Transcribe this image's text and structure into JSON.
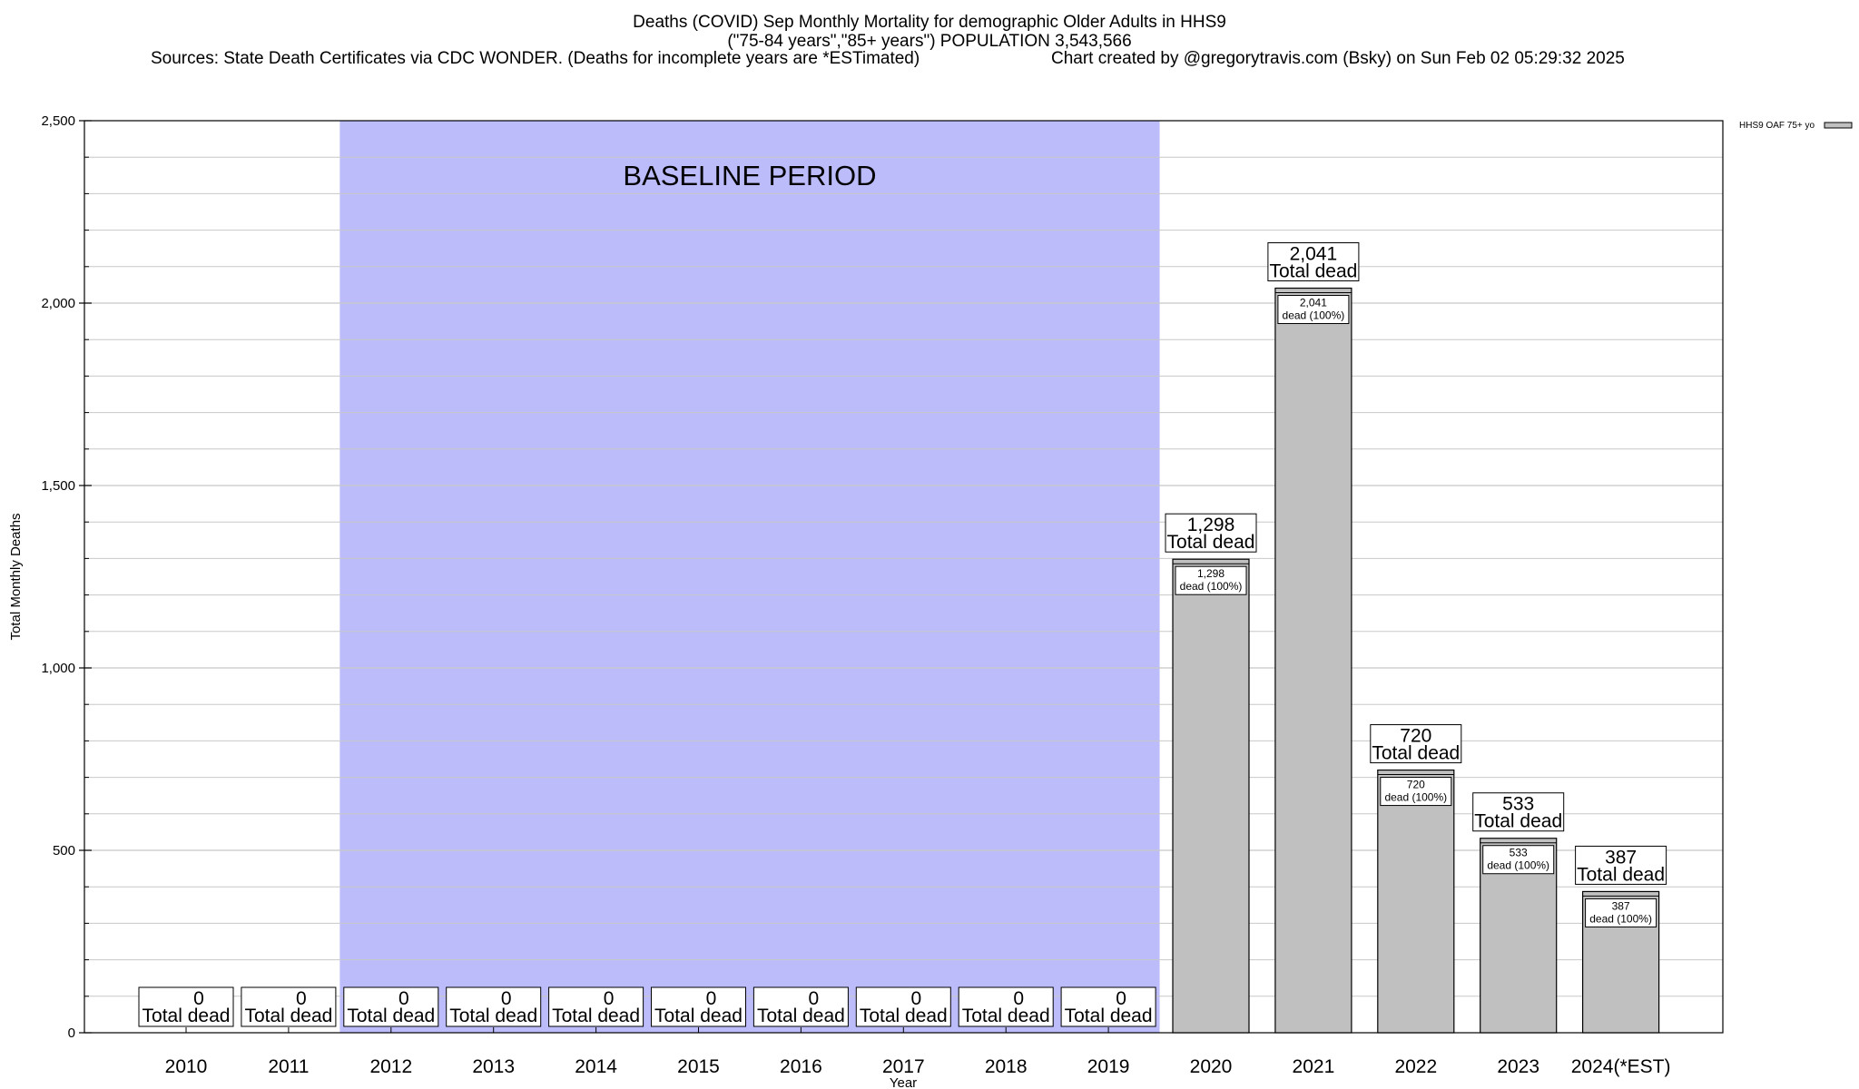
{
  "title": {
    "line1": "Deaths (COVID) Sep Monthly Mortality for demographic Older Adults in HHS9",
    "line2": "(\"75-84 years\",\"85+ years\") POPULATION 3,543,566",
    "sources": "Sources: State Death Certificates via CDC WONDER. (Deaths for incomplete years are *ESTimated)",
    "credit": "Chart created by @gregorytravis.com (Bsky) on Sun Feb 02 05:29:32 2025"
  },
  "colors": {
    "bar": "#c0c0c0",
    "baseline_band": "#bcbcfb",
    "grid": "#c8c8c8"
  },
  "chart_data": {
    "type": "bar",
    "xlabel": "Year",
    "ylabel": "Total Monthly Deaths",
    "ylim": [
      0,
      2500
    ],
    "yticks": [
      0,
      500,
      1000,
      1500,
      2000,
      2500
    ],
    "ytick_labels": [
      "0",
      "500",
      "1,000",
      "1,500",
      "2,000",
      "2,500"
    ],
    "grid": true,
    "legend": {
      "entry": "HHS9 OAF 75+ yo",
      "position": "top-right"
    },
    "categories": [
      "2010",
      "2011",
      "2012",
      "2013",
      "2014",
      "2015",
      "2016",
      "2017",
      "2018",
      "2019",
      "2020",
      "2021",
      "2022",
      "2023",
      "2024(*EST)"
    ],
    "series": [
      {
        "name": "HHS9 OAF 75+ yo",
        "values": [
          0,
          0,
          0,
          0,
          0,
          0,
          0,
          0,
          0,
          0,
          1298,
          2041,
          720,
          533,
          387
        ]
      }
    ],
    "total_labels": [
      "0",
      "0",
      "0",
      "0",
      "0",
      "0",
      "0",
      "0",
      "0",
      "0",
      "1,298",
      "2,041",
      "720",
      "533",
      "387"
    ],
    "total_caption": "Total dead",
    "segment_labels": [
      "",
      "",
      "",
      "",
      "",
      "",
      "",
      "",
      "",
      "",
      "1,298",
      "2,041",
      "720",
      "533",
      "387"
    ],
    "segment_caption": "dead (100%)",
    "annotation": {
      "text": "BASELINE PERIOD",
      "start": "2012",
      "end": "2019"
    }
  }
}
